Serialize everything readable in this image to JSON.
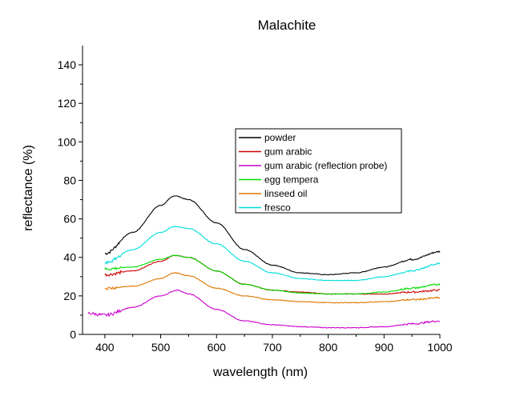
{
  "chart_data": {
    "type": "line",
    "title": "Malachite",
    "xlabel": "wavelength (nm)",
    "ylabel": "reflectance (%)",
    "xlim": [
      360,
      1000
    ],
    "ylim": [
      0,
      150
    ],
    "xticks": [
      400,
      500,
      600,
      700,
      800,
      900,
      1000
    ],
    "yticks": [
      0,
      20,
      40,
      60,
      80,
      100,
      120,
      140
    ],
    "grid": false,
    "legend_position": "center-right",
    "series": [
      {
        "name": "powder",
        "color": "#000000",
        "x": [
          400,
          450,
          500,
          525,
          550,
          600,
          650,
          700,
          750,
          800,
          850,
          900,
          950,
          1000
        ],
        "y": [
          42,
          53,
          67,
          72,
          70,
          58,
          44,
          36,
          32,
          31,
          32,
          35,
          39,
          43
        ]
      },
      {
        "name": "gum arabic",
        "color": "#cc0000",
        "x": [
          400,
          450,
          500,
          525,
          550,
          600,
          650,
          700,
          750,
          800,
          850,
          900,
          950,
          1000
        ],
        "y": [
          31,
          33,
          38,
          41,
          40,
          33,
          26,
          23,
          22,
          21,
          21,
          21,
          22,
          23
        ]
      },
      {
        "name": "gum arabic (reflection probe)",
        "color": "#cc00cc",
        "x": [
          370,
          400,
          450,
          500,
          530,
          550,
          600,
          650,
          700,
          750,
          800,
          850,
          900,
          950,
          1000
        ],
        "y": [
          11,
          10,
          14,
          20,
          23,
          21,
          13,
          7,
          5,
          4,
          3.5,
          3.5,
          4,
          5.5,
          7
        ]
      },
      {
        "name": "egg tempera",
        "color": "#00dd00",
        "x": [
          400,
          450,
          500,
          525,
          550,
          600,
          650,
          700,
          750,
          800,
          850,
          900,
          950,
          1000
        ],
        "y": [
          34,
          35,
          39,
          41,
          40,
          33,
          26,
          23,
          21.5,
          21,
          21,
          22,
          24,
          26
        ]
      },
      {
        "name": "linseed oil",
        "color": "#dd7700",
        "x": [
          400,
          450,
          500,
          525,
          550,
          600,
          650,
          700,
          750,
          800,
          850,
          900,
          950,
          1000
        ],
        "y": [
          24,
          25,
          29,
          32,
          30.5,
          24,
          20,
          18,
          17,
          16.5,
          16.5,
          17,
          18,
          19
        ]
      },
      {
        "name": "fresco",
        "color": "#00dddd",
        "x": [
          400,
          450,
          500,
          525,
          550,
          600,
          650,
          700,
          750,
          800,
          850,
          900,
          950,
          1000
        ],
        "y": [
          37,
          44,
          53,
          56,
          55,
          47,
          38,
          32,
          29,
          28,
          28,
          30,
          33,
          37
        ]
      }
    ]
  }
}
